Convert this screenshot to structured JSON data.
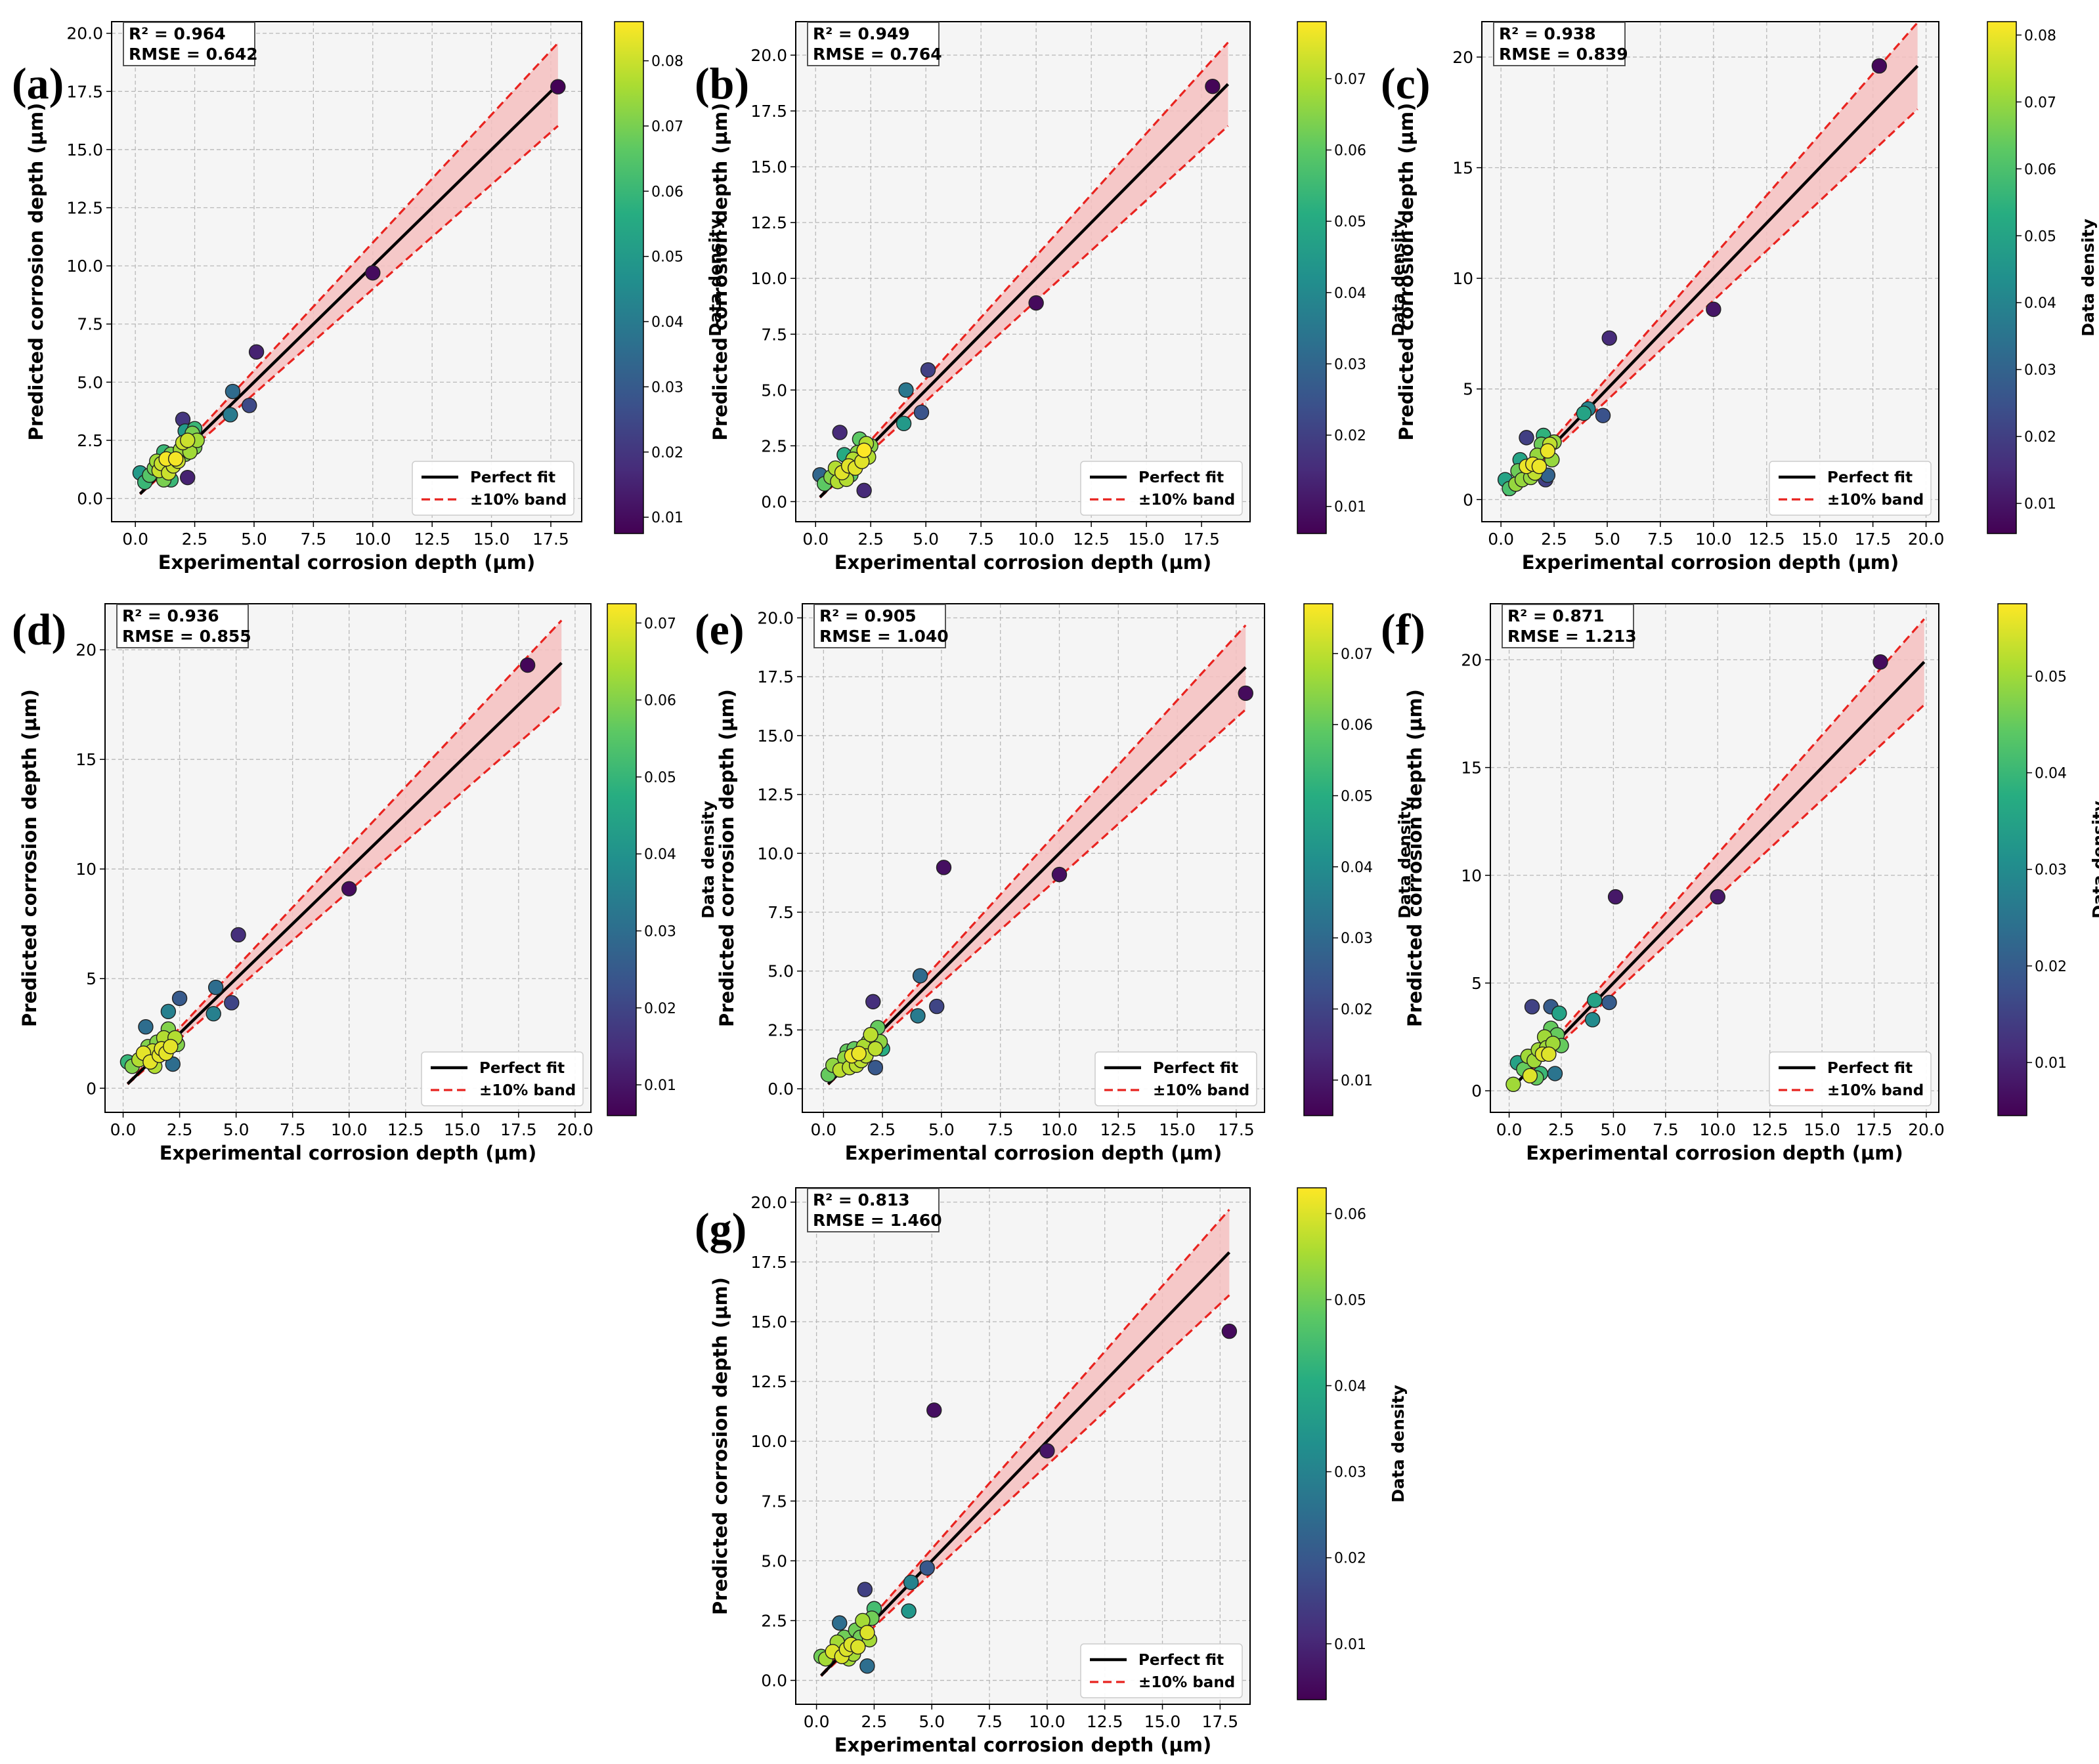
{
  "figure": {
    "xlabel": "Experimental corrosion depth (µm)",
    "ylabel": "Predicted corrosion depth (µm)",
    "colorbar_label": "Data density",
    "legend": {
      "perfect_fit": "Perfect fit",
      "band": "±10% band"
    },
    "colors": {
      "perfect_fit": "#000000",
      "band_line": "#e8231f",
      "band_fill": "#f4c0c0",
      "plot_bg": "#f5f5f5",
      "grid": "#b8b8b8"
    },
    "colormap": "viridis"
  },
  "chart_data": [
    {
      "panel": "(a)",
      "type": "scatter",
      "r2": "R² = 0.964",
      "rmse": "RMSE = 0.642",
      "xlim": [
        -1,
        18.8
      ],
      "ylim": [
        -1,
        20.5
      ],
      "xticks": [
        "0.0",
        "2.5",
        "5.0",
        "7.5",
        "10.0",
        "12.5",
        "15.0",
        "17.5"
      ],
      "yticks": [
        "0.0",
        "2.5",
        "5.0",
        "7.5",
        "10.0",
        "12.5",
        "15.0",
        "17.5",
        "20.0"
      ],
      "fit_range": [
        0.2,
        17.8
      ],
      "cb_range": [
        0.0075,
        0.086
      ],
      "cb_ticks": [
        "0.01",
        "0.02",
        "0.03",
        "0.04",
        "0.05",
        "0.06",
        "0.07",
        "0.08"
      ],
      "points": [
        [
          0.2,
          1.1,
          0.05
        ],
        [
          0.4,
          0.7,
          0.06
        ],
        [
          0.6,
          1.0,
          0.065
        ],
        [
          0.8,
          1.3,
          0.07
        ],
        [
          0.9,
          1.6,
          0.075
        ],
        [
          1.0,
          1.2,
          0.08
        ],
        [
          1.1,
          1.5,
          0.08
        ],
        [
          1.2,
          2.0,
          0.06
        ],
        [
          1.2,
          0.8,
          0.07
        ],
        [
          1.3,
          1.7,
          0.085
        ],
        [
          1.4,
          1.1,
          0.08
        ],
        [
          1.5,
          1.9,
          0.07
        ],
        [
          1.5,
          0.8,
          0.06
        ],
        [
          1.6,
          1.4,
          0.08
        ],
        [
          1.7,
          1.7,
          0.085
        ],
        [
          1.8,
          1.6,
          0.08
        ],
        [
          1.9,
          2.1,
          0.075
        ],
        [
          2.0,
          2.4,
          0.08
        ],
        [
          2.0,
          3.4,
          0.02
        ],
        [
          2.1,
          2.9,
          0.05
        ],
        [
          2.1,
          1.9,
          0.07
        ],
        [
          2.2,
          0.9,
          0.015
        ],
        [
          2.2,
          2.5,
          0.08
        ],
        [
          2.3,
          2.0,
          0.075
        ],
        [
          2.4,
          2.8,
          0.07
        ],
        [
          2.5,
          2.2,
          0.07
        ],
        [
          2.5,
          3.0,
          0.06
        ],
        [
          2.6,
          2.5,
          0.075
        ],
        [
          4.0,
          3.6,
          0.04
        ],
        [
          4.1,
          4.6,
          0.035
        ],
        [
          4.8,
          4.0,
          0.025
        ],
        [
          5.1,
          6.3,
          0.015
        ],
        [
          10.0,
          9.7,
          0.01
        ],
        [
          17.8,
          17.7,
          0.008
        ]
      ]
    },
    {
      "panel": "(b)",
      "type": "scatter",
      "r2": "R² = 0.949",
      "rmse": "RMSE = 0.764",
      "xlim": [
        -0.9,
        19.7
      ],
      "ylim": [
        -0.9,
        21.5
      ],
      "xticks": [
        "0.0",
        "2.5",
        "5.0",
        "7.5",
        "10.0",
        "12.5",
        "15.0",
        "17.5"
      ],
      "yticks": [
        "0.0",
        "2.5",
        "5.0",
        "7.5",
        "10.0",
        "12.5",
        "15.0",
        "17.5",
        "20.0"
      ],
      "fit_range": [
        0.2,
        18.7
      ],
      "cb_range": [
        0.0062,
        0.078
      ],
      "cb_ticks": [
        "0.01",
        "0.02",
        "0.03",
        "0.04",
        "0.05",
        "0.06",
        "0.07"
      ],
      "points": [
        [
          0.2,
          1.2,
          0.03
        ],
        [
          0.4,
          0.8,
          0.06
        ],
        [
          0.7,
          1.1,
          0.065
        ],
        [
          0.9,
          1.5,
          0.07
        ],
        [
          1.0,
          0.9,
          0.07
        ],
        [
          1.1,
          3.1,
          0.015
        ],
        [
          1.2,
          1.3,
          0.075
        ],
        [
          1.3,
          2.1,
          0.05
        ],
        [
          1.4,
          1.0,
          0.07
        ],
        [
          1.5,
          1.6,
          0.075
        ],
        [
          1.6,
          1.2,
          0.06
        ],
        [
          1.7,
          1.9,
          0.07
        ],
        [
          1.8,
          1.5,
          0.075
        ],
        [
          1.9,
          2.2,
          0.065
        ],
        [
          2.0,
          2.8,
          0.06
        ],
        [
          2.1,
          1.8,
          0.075
        ],
        [
          2.2,
          0.5,
          0.015
        ],
        [
          2.2,
          2.3,
          0.078
        ],
        [
          2.3,
          2.6,
          0.07
        ],
        [
          2.4,
          2.0,
          0.07
        ],
        [
          2.5,
          2.5,
          0.065
        ],
        [
          4.0,
          3.5,
          0.045
        ],
        [
          4.1,
          5.0,
          0.035
        ],
        [
          4.8,
          4.0,
          0.025
        ],
        [
          5.1,
          5.9,
          0.02
        ],
        [
          10.0,
          8.9,
          0.008
        ],
        [
          18.0,
          18.6,
          0.007
        ]
      ]
    },
    {
      "panel": "(c)",
      "type": "scatter",
      "r2": "R² = 0.938",
      "rmse": "RMSE = 0.839",
      "xlim": [
        -0.9,
        20.6
      ],
      "ylim": [
        -1,
        21.6
      ],
      "xticks": [
        "0.0",
        "2.5",
        "5.0",
        "7.5",
        "10.0",
        "12.5",
        "15.0",
        "17.5",
        "20.0"
      ],
      "yticks": [
        "0",
        "5",
        "10",
        "15",
        "20"
      ],
      "fit_range": [
        0.2,
        19.6
      ],
      "cb_range": [
        0.0055,
        0.082
      ],
      "cb_ticks": [
        "0.01",
        "0.02",
        "0.03",
        "0.04",
        "0.05",
        "0.06",
        "0.07",
        "0.08"
      ],
      "points": [
        [
          0.2,
          0.9,
          0.05
        ],
        [
          0.4,
          0.5,
          0.06
        ],
        [
          0.7,
          0.7,
          0.07
        ],
        [
          0.8,
          1.3,
          0.065
        ],
        [
          0.9,
          1.8,
          0.05
        ],
        [
          1.0,
          0.9,
          0.07
        ],
        [
          1.2,
          1.5,
          0.08
        ],
        [
          1.2,
          2.8,
          0.02
        ],
        [
          1.4,
          1.0,
          0.07
        ],
        [
          1.5,
          1.6,
          0.08
        ],
        [
          1.6,
          1.2,
          0.075
        ],
        [
          1.7,
          2.0,
          0.07
        ],
        [
          1.8,
          1.5,
          0.08
        ],
        [
          1.9,
          2.5,
          0.065
        ],
        [
          2.0,
          2.9,
          0.055
        ],
        [
          2.1,
          0.9,
          0.02
        ],
        [
          2.2,
          1.1,
          0.03
        ],
        [
          2.2,
          2.2,
          0.08
        ],
        [
          2.3,
          2.5,
          0.075
        ],
        [
          2.4,
          1.8,
          0.07
        ],
        [
          2.5,
          2.6,
          0.07
        ],
        [
          3.9,
          3.9,
          0.05
        ],
        [
          4.1,
          4.1,
          0.04
        ],
        [
          4.8,
          3.8,
          0.025
        ],
        [
          5.1,
          7.3,
          0.015
        ],
        [
          10.0,
          8.6,
          0.01
        ],
        [
          17.8,
          19.6,
          0.007
        ]
      ]
    },
    {
      "panel": "(d)",
      "type": "scatter",
      "r2": "R² = 0.936",
      "rmse": "RMSE = 0.855",
      "xlim": [
        -0.8,
        20.7
      ],
      "ylim": [
        -1.1,
        22.1
      ],
      "xticks": [
        "0.0",
        "2.5",
        "5.0",
        "7.5",
        "10.0",
        "12.5",
        "15.0",
        "17.5",
        "20.0"
      ],
      "yticks": [
        "0",
        "5",
        "10",
        "15",
        "20"
      ],
      "fit_range": [
        0.2,
        19.4
      ],
      "cb_range": [
        0.006,
        0.0725
      ],
      "cb_ticks": [
        "0.01",
        "0.02",
        "0.03",
        "0.04",
        "0.05",
        "0.06",
        "0.07"
      ],
      "points": [
        [
          0.2,
          1.2,
          0.05
        ],
        [
          0.4,
          1.0,
          0.06
        ],
        [
          0.7,
          1.3,
          0.065
        ],
        [
          0.9,
          1.6,
          0.07
        ],
        [
          1.0,
          2.8,
          0.03
        ],
        [
          1.1,
          1.9,
          0.06
        ],
        [
          1.2,
          1.2,
          0.07
        ],
        [
          1.3,
          1.7,
          0.068
        ],
        [
          1.4,
          1.0,
          0.065
        ],
        [
          1.5,
          2.1,
          0.06
        ],
        [
          1.6,
          1.5,
          0.07
        ],
        [
          1.7,
          1.8,
          0.07
        ],
        [
          1.8,
          2.3,
          0.065
        ],
        [
          1.9,
          1.6,
          0.07
        ],
        [
          2.0,
          2.7,
          0.06
        ],
        [
          2.0,
          3.5,
          0.035
        ],
        [
          2.1,
          1.9,
          0.07
        ],
        [
          2.2,
          1.1,
          0.03
        ],
        [
          2.3,
          2.3,
          0.065
        ],
        [
          2.4,
          2.0,
          0.06
        ],
        [
          2.5,
          4.1,
          0.025
        ],
        [
          4.0,
          3.4,
          0.035
        ],
        [
          4.1,
          4.6,
          0.03
        ],
        [
          4.8,
          3.9,
          0.02
        ],
        [
          5.1,
          7.0,
          0.015
        ],
        [
          10.0,
          9.1,
          0.008
        ],
        [
          17.9,
          19.3,
          0.007
        ]
      ]
    },
    {
      "panel": "(e)",
      "type": "scatter",
      "r2": "R² = 0.905",
      "rmse": "RMSE = 1.040",
      "xlim": [
        -0.9,
        18.7
      ],
      "ylim": [
        -1,
        20.6
      ],
      "xticks": [
        "0.0",
        "2.5",
        "5.0",
        "7.5",
        "10.0",
        "12.5",
        "15.0",
        "17.5"
      ],
      "yticks": [
        "0.0",
        "2.5",
        "5.0",
        "7.5",
        "10.0",
        "12.5",
        "15.0",
        "17.5",
        "20.0"
      ],
      "fit_range": [
        0.2,
        17.9
      ],
      "cb_range": [
        0.005,
        0.077
      ],
      "cb_ticks": [
        "0.01",
        "0.02",
        "0.03",
        "0.04",
        "0.05",
        "0.06",
        "0.07"
      ],
      "points": [
        [
          0.2,
          0.6,
          0.06
        ],
        [
          0.4,
          1.0,
          0.065
        ],
        [
          0.7,
          0.8,
          0.07
        ],
        [
          0.9,
          1.3,
          0.065
        ],
        [
          1.0,
          1.6,
          0.06
        ],
        [
          1.1,
          0.9,
          0.07
        ],
        [
          1.2,
          1.4,
          0.075
        ],
        [
          1.3,
          1.7,
          0.06
        ],
        [
          1.4,
          1.0,
          0.07
        ],
        [
          1.5,
          1.5,
          0.075
        ],
        [
          1.6,
          1.2,
          0.07
        ],
        [
          1.7,
          1.8,
          0.068
        ],
        [
          1.8,
          1.4,
          0.07
        ],
        [
          1.9,
          2.0,
          0.065
        ],
        [
          2.0,
          2.3,
          0.07
        ],
        [
          2.1,
          3.7,
          0.015
        ],
        [
          2.2,
          0.9,
          0.025
        ],
        [
          2.2,
          1.7,
          0.07
        ],
        [
          2.3,
          2.6,
          0.06
        ],
        [
          2.4,
          2.0,
          0.065
        ],
        [
          2.5,
          1.7,
          0.05
        ],
        [
          4.0,
          3.1,
          0.035
        ],
        [
          4.1,
          4.8,
          0.03
        ],
        [
          4.8,
          3.5,
          0.02
        ],
        [
          5.1,
          9.4,
          0.008
        ],
        [
          10.0,
          9.1,
          0.008
        ],
        [
          17.9,
          16.8,
          0.007
        ]
      ]
    },
    {
      "panel": "(f)",
      "type": "scatter",
      "r2": "R² = 0.871",
      "rmse": "RMSE = 1.213",
      "xlim": [
        -0.9,
        20.6
      ],
      "ylim": [
        -1,
        22.6
      ],
      "xticks": [
        "0.0",
        "2.5",
        "5.0",
        "7.5",
        "10.0",
        "12.5",
        "15.0",
        "17.5",
        "20.0"
      ],
      "yticks": [
        "0",
        "5",
        "10",
        "15",
        "20"
      ],
      "fit_range": [
        0.2,
        19.9
      ],
      "cb_range": [
        0.0045,
        0.0575
      ],
      "cb_ticks": [
        "0.01",
        "0.02",
        "0.03",
        "0.04",
        "0.05"
      ],
      "points": [
        [
          0.2,
          0.3,
          0.05
        ],
        [
          0.4,
          1.3,
          0.035
        ],
        [
          0.7,
          1.0,
          0.045
        ],
        [
          0.9,
          1.6,
          0.05
        ],
        [
          1.0,
          0.7,
          0.055
        ],
        [
          1.1,
          3.9,
          0.015
        ],
        [
          1.2,
          1.4,
          0.05
        ],
        [
          1.3,
          0.6,
          0.045
        ],
        [
          1.4,
          1.9,
          0.05
        ],
        [
          1.5,
          0.8,
          0.04
        ],
        [
          1.6,
          1.7,
          0.055
        ],
        [
          1.7,
          2.5,
          0.05
        ],
        [
          1.8,
          2.0,
          0.05
        ],
        [
          1.9,
          1.7,
          0.055
        ],
        [
          2.0,
          2.9,
          0.045
        ],
        [
          2.0,
          3.9,
          0.02
        ],
        [
          2.1,
          2.2,
          0.05
        ],
        [
          2.2,
          0.8,
          0.025
        ],
        [
          2.3,
          2.6,
          0.045
        ],
        [
          2.4,
          3.6,
          0.035
        ],
        [
          2.5,
          2.1,
          0.045
        ],
        [
          4.0,
          3.3,
          0.03
        ],
        [
          4.1,
          4.2,
          0.035
        ],
        [
          4.8,
          4.1,
          0.02
        ],
        [
          5.1,
          9.0,
          0.008
        ],
        [
          10.0,
          9.0,
          0.008
        ],
        [
          17.8,
          19.9,
          0.006
        ]
      ]
    },
    {
      "panel": "(g)",
      "type": "scatter",
      "r2": "R² = 0.813",
      "rmse": "RMSE = 1.460",
      "xlim": [
        -0.9,
        18.8
      ],
      "ylim": [
        -1,
        20.6
      ],
      "xticks": [
        "0.0",
        "2.5",
        "5.0",
        "7.5",
        "10.0",
        "12.5",
        "15.0",
        "17.5"
      ],
      "yticks": [
        "0.0",
        "2.5",
        "5.0",
        "7.5",
        "10.0",
        "12.5",
        "15.0",
        "17.5",
        "20.0"
      ],
      "fit_range": [
        0.2,
        17.9
      ],
      "cb_range": [
        0.0035,
        0.063
      ],
      "cb_ticks": [
        "0.01",
        "0.02",
        "0.03",
        "0.04",
        "0.05",
        "0.06"
      ],
      "points": [
        [
          0.2,
          1.0,
          0.05
        ],
        [
          0.4,
          0.9,
          0.055
        ],
        [
          0.7,
          1.2,
          0.06
        ],
        [
          0.9,
          1.6,
          0.055
        ],
        [
          1.0,
          2.4,
          0.025
        ],
        [
          1.1,
          1.0,
          0.06
        ],
        [
          1.2,
          1.8,
          0.05
        ],
        [
          1.3,
          1.3,
          0.06
        ],
        [
          1.4,
          0.9,
          0.055
        ],
        [
          1.5,
          1.5,
          0.06
        ],
        [
          1.6,
          1.1,
          0.055
        ],
        [
          1.7,
          2.1,
          0.05
        ],
        [
          1.8,
          1.4,
          0.06
        ],
        [
          1.9,
          1.8,
          0.05
        ],
        [
          2.0,
          2.5,
          0.055
        ],
        [
          2.1,
          3.8,
          0.015
        ],
        [
          2.2,
          0.6,
          0.025
        ],
        [
          2.2,
          2.0,
          0.06
        ],
        [
          2.3,
          1.7,
          0.055
        ],
        [
          2.4,
          2.6,
          0.05
        ],
        [
          2.5,
          3.0,
          0.045
        ],
        [
          4.0,
          2.9,
          0.035
        ],
        [
          4.1,
          4.1,
          0.03
        ],
        [
          4.8,
          4.7,
          0.02
        ],
        [
          5.1,
          11.3,
          0.006
        ],
        [
          10.0,
          9.6,
          0.007
        ],
        [
          17.9,
          14.6,
          0.005
        ]
      ]
    }
  ]
}
